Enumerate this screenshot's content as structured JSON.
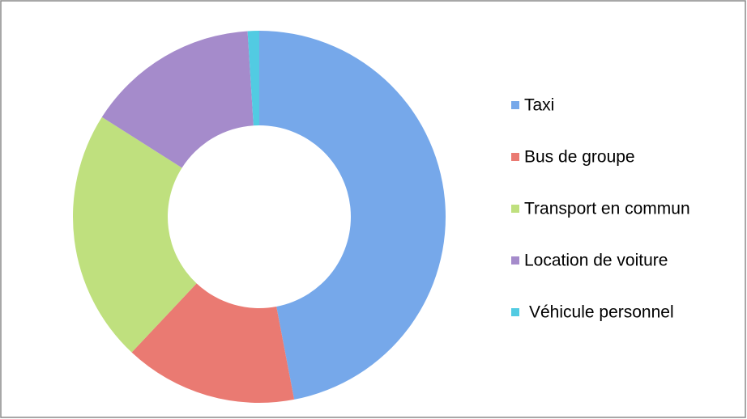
{
  "chart_data": {
    "type": "donut",
    "categories": [
      "Taxi",
      "Bus de groupe",
      "Transport en commun",
      "Location de voiture",
      "Véhicule personnel"
    ],
    "values": [
      47,
      15,
      22,
      15,
      1
    ],
    "colors": [
      "#76a8ea",
      "#ea7a72",
      "#bfe07e",
      "#a58bcb",
      "#52cbe2"
    ],
    "legend": "right"
  }
}
